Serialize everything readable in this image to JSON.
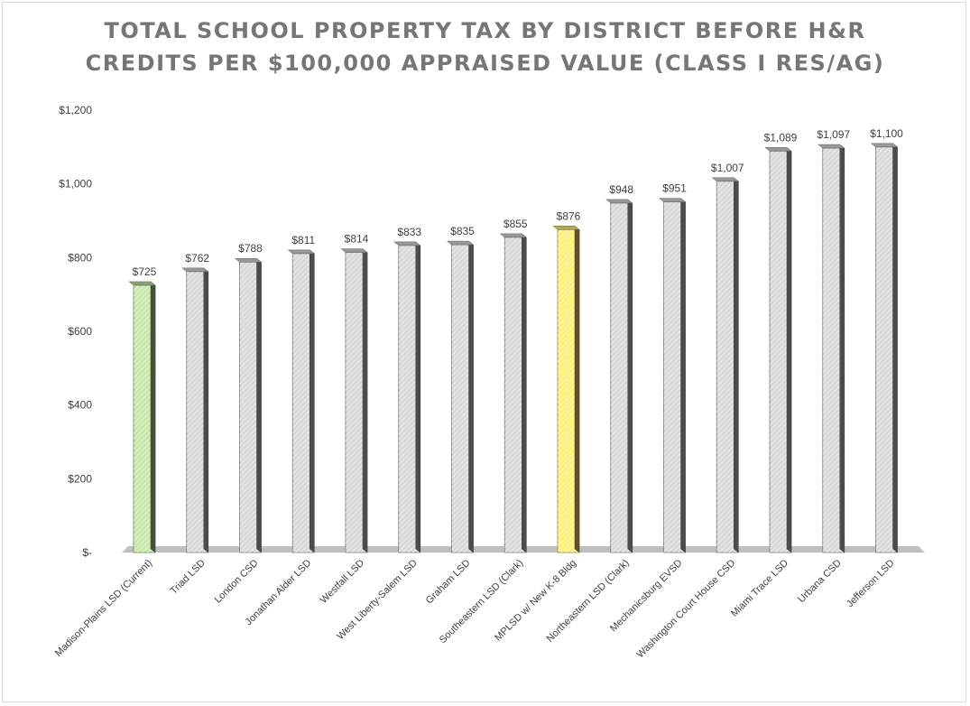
{
  "chart_data": {
    "type": "bar",
    "title_line1": "TOTAL SCHOOL PROPERTY TAX BY DISTRICT BEFORE H&R",
    "title_line2": "CREDITS PER $100,000 APPRAISED VALUE (CLASS I RES/AG)",
    "categories": [
      "Madison-Plains LSD (Current)",
      "Triad LSD",
      "London CSD",
      "Jonathan Alder LSD",
      "Westfall LSD",
      "West Liberty-Salem LSD",
      "Graham LSD",
      "Southeastern LSD (Clark)",
      "MPLSD w/ New K-8 Bldg",
      "Northeastern LSD (Clark)",
      "Mechanicsburg EVSD",
      "Washington Court House CSD",
      "Miami Trace LSD",
      "Urbana CSD",
      "Jefferson LSD"
    ],
    "values": [
      725,
      762,
      788,
      811,
      814,
      833,
      835,
      855,
      876,
      948,
      951,
      1007,
      1089,
      1097,
      1100
    ],
    "data_labels": [
      "$725",
      "$762",
      "$788",
      "$811",
      "$814",
      "$833",
      "$835",
      "$855",
      "$876",
      "$948",
      "$951",
      "$1,007",
      "$1,089",
      "$1,097",
      "$1,100"
    ],
    "y_ticks": [
      0,
      200,
      400,
      600,
      800,
      1000,
      1200
    ],
    "y_tick_labels": [
      "$-",
      "$200",
      "$400",
      "$600",
      "$800",
      "$1,000",
      "$1,200"
    ],
    "ylim": [
      0,
      1200
    ],
    "grid": false,
    "legend": "none",
    "colors": {
      "default": "#d9d9d9",
      "current": "#c6e8a8",
      "new_building": "#fff07a",
      "floor": "#bfbfbf",
      "title": "#767676"
    },
    "highlight": {
      "Madison-Plains LSD (Current)": "current",
      "MPLSD w/ New K-8 Bldg": "new_building"
    }
  }
}
